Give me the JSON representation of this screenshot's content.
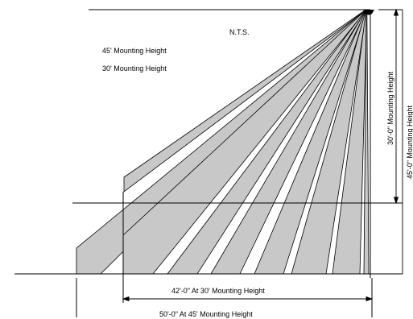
{
  "diagram": {
    "note": "N.T.S.",
    "legend": {
      "mount_45": "45' Mounting Height",
      "mount_30": "30' Mounting Height"
    },
    "dimensions": {
      "vertical_30": "30'-0\" Mounting Height",
      "vertical_45": "45'-0\" Mounting Height",
      "horizontal_30": "42'-0\"   At 30' Mounting Height",
      "horizontal_45": "50'-0\"   At 45' Mounting Height"
    },
    "colors": {
      "beam_fill": "#c8c8c8",
      "line": "#000000",
      "background": "#ffffff"
    },
    "sensor_icon": "motion-sensor-icon"
  }
}
